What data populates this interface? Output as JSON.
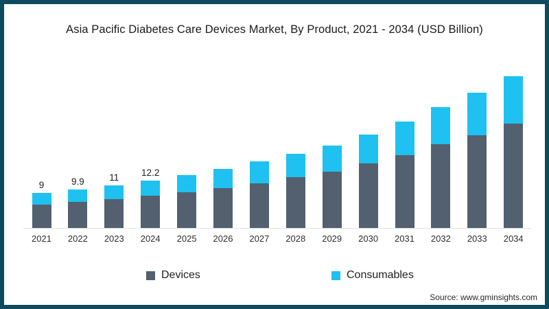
{
  "title": "Asia Pacific Diabetes Care Devices Market, By Product, 2021 - 2034 (USD Billion)",
  "source": "Source: www.gminsights.com",
  "colors": {
    "frame_border": "#0e4a5e",
    "background": "#ffffff",
    "devices": "#52606f",
    "consumables": "#1ec1f0",
    "axis_line": "#e2e2e2"
  },
  "legend": [
    {
      "label": "Devices",
      "color": "#52606f"
    },
    {
      "label": "Consumables",
      "color": "#1ec1f0"
    }
  ],
  "chart_data": {
    "type": "bar",
    "stacked": true,
    "title": "Asia Pacific Diabetes Care Devices Market, By Product, 2021 - 2034 (USD Billion)",
    "xlabel": "",
    "ylabel": "",
    "ylim": [
      0,
      40
    ],
    "grid": false,
    "legend_position": "bottom",
    "categories": [
      "2021",
      "2022",
      "2023",
      "2024",
      "2025",
      "2026",
      "2027",
      "2028",
      "2029",
      "2030",
      "2031",
      "2032",
      "2033",
      "2034"
    ],
    "series": [
      {
        "name": "Devices",
        "color": "#52606f",
        "values": [
          6.1,
          6.7,
          7.4,
          8.3,
          9.2,
          10.3,
          11.6,
          13.1,
          14.6,
          16.7,
          18.8,
          21.7,
          24.0,
          27.0
        ]
      },
      {
        "name": "Consumables",
        "color": "#1ec1f0",
        "values": [
          2.9,
          3.2,
          3.6,
          3.9,
          4.4,
          4.9,
          5.6,
          6.0,
          6.7,
          7.5,
          8.7,
          9.6,
          11.0,
          12.2
        ]
      }
    ],
    "totals": [
      9,
      9.9,
      11,
      12.2,
      13.6,
      15.2,
      17.2,
      19.1,
      21.3,
      24.2,
      27.5,
      31.3,
      35.0,
      39.2
    ],
    "data_labels": [
      "9",
      "9.9",
      "11",
      "12.2",
      "",
      "",
      "",
      "",
      "",
      "",
      "",
      "",
      "",
      ""
    ]
  }
}
